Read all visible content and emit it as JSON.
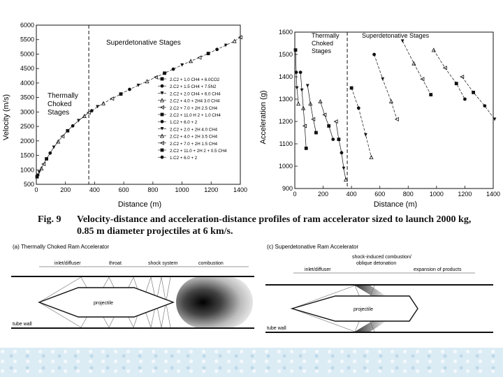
{
  "figure": {
    "caption_label": "Fig. 9",
    "caption_line1": "Velocity-distance and acceleration-distance profiles of ram accelerator sized to launch 2000 kg,",
    "caption_line2": "0.85 m diameter projectiles at 6 km/s."
  },
  "colors": {
    "ink": "#111111",
    "band": "#dcecf5"
  },
  "chart_data": [
    {
      "type": "scatter",
      "xlabel": "Distance (m)",
      "ylabel": "Velocity (m/s)",
      "xlim": [
        0,
        1400
      ],
      "ylim": [
        500,
        6000
      ],
      "xticks": [
        0,
        200,
        400,
        600,
        800,
        1000,
        1200,
        1400
      ],
      "yticks": [
        500,
        1000,
        1500,
        2000,
        2500,
        3000,
        3500,
        4000,
        4500,
        5000,
        5500,
        6000
      ],
      "divider_x": 360,
      "annotations": [
        "Thermally Choked Stages",
        "Superdetonative Stages"
      ],
      "legend": [
        "2.C2 + 1.0 CH4 + 6.0CO2",
        "2.C2 + 1.5 CH4 + 7.5N2",
        "2.C2 + 2.0 CH4 + 6.0 CH4",
        "2.C2 + 4.0 + 2H4 3.0 CH4",
        "2.C2 + 7.0 + 2H 2.5 CH4",
        "2.C2 + 11.0 H 2 + 1.0 CH4",
        "1.C2 + 6.0 + 2",
        "2.C2 + 2.0 + 2H 4.0 CH4",
        "2.C2 + 4.0 + 2H 3.5 CH4",
        "2.C2 + 7.0 + 2H 1.5 CH4",
        "2.C2 + 11.0 + 2H 2 + 0.5 CH4",
        "1.C2 + 6.0 + 2"
      ],
      "series_points": {
        "thermally_choked": [
          [
            5,
            760
          ],
          [
            10,
            820
          ],
          [
            20,
            920
          ],
          [
            35,
            1050
          ],
          [
            50,
            1200
          ],
          [
            70,
            1380
          ],
          [
            95,
            1580
          ],
          [
            120,
            1780
          ],
          [
            150,
            1980
          ],
          [
            180,
            2160
          ],
          [
            215,
            2350
          ],
          [
            250,
            2520
          ],
          [
            290,
            2700
          ],
          [
            330,
            2860
          ],
          [
            360,
            2980
          ]
        ],
        "superdetonative": [
          [
            380,
            3040
          ],
          [
            420,
            3180
          ],
          [
            460,
            3300
          ],
          [
            520,
            3460
          ],
          [
            580,
            3620
          ],
          [
            640,
            3780
          ],
          [
            700,
            3920
          ],
          [
            760,
            4060
          ],
          [
            820,
            4200
          ],
          [
            880,
            4340
          ],
          [
            940,
            4480
          ],
          [
            1000,
            4620
          ],
          [
            1060,
            4760
          ],
          [
            1120,
            4880
          ],
          [
            1180,
            5020
          ],
          [
            1240,
            5160
          ],
          [
            1300,
            5300
          ],
          [
            1360,
            5450
          ],
          [
            1400,
            5580
          ]
        ]
      }
    },
    {
      "type": "scatter",
      "xlabel": "Distance (m)",
      "ylabel": "Acceleration (g)",
      "xlim": [
        0,
        1400
      ],
      "ylim": [
        900,
        1600
      ],
      "xticks": [
        0,
        200,
        400,
        600,
        800,
        1000,
        1200,
        1400
      ],
      "yticks": [
        900,
        1000,
        1100,
        1200,
        1300,
        1400,
        1500,
        1600
      ],
      "divider_x": 370,
      "annotations": [
        "Thermally Choked Stages",
        "Superdetonative Stages"
      ],
      "series_points": {
        "choked_a": [
          [
            5,
            1520
          ],
          [
            10,
            1420
          ],
          [
            15,
            1350
          ],
          [
            25,
            1280
          ]
        ],
        "choked_b": [
          [
            40,
            1420
          ],
          [
            50,
            1340
          ],
          [
            60,
            1260
          ],
          [
            70,
            1180
          ],
          [
            80,
            1080
          ]
        ],
        "choked_c": [
          [
            90,
            1360
          ],
          [
            110,
            1280
          ],
          [
            130,
            1210
          ],
          [
            150,
            1150
          ]
        ],
        "choked_d": [
          [
            180,
            1290
          ],
          [
            210,
            1230
          ],
          [
            240,
            1180
          ],
          [
            270,
            1120
          ]
        ],
        "choked_e": [
          [
            290,
            1200
          ],
          [
            310,
            1120
          ],
          [
            330,
            1060
          ],
          [
            345,
            990
          ],
          [
            360,
            940
          ]
        ],
        "super_1": [
          [
            400,
            1350
          ],
          [
            450,
            1260
          ],
          [
            500,
            1140
          ],
          [
            540,
            1040
          ]
        ],
        "super_2": [
          [
            560,
            1500
          ],
          [
            620,
            1390
          ],
          [
            680,
            1290
          ],
          [
            720,
            1210
          ]
        ],
        "super_3": [
          [
            760,
            1560
          ],
          [
            840,
            1460
          ],
          [
            900,
            1390
          ],
          [
            960,
            1320
          ]
        ],
        "super_4": [
          [
            980,
            1520
          ],
          [
            1060,
            1440
          ],
          [
            1140,
            1370
          ],
          [
            1200,
            1300
          ]
        ],
        "super_5": [
          [
            1180,
            1400
          ],
          [
            1260,
            1330
          ],
          [
            1340,
            1270
          ],
          [
            1410,
            1210
          ]
        ]
      }
    }
  ],
  "diagram_a": {
    "title": "(a) Thermally Choked Ram Accelerator",
    "labels": [
      "inlet/diffuser",
      "throat",
      "shock system",
      "combustion"
    ],
    "projectile": "projectile",
    "tube": "tube wall"
  },
  "diagram_c": {
    "title": "(c) Superdetonative Ram Accelerator",
    "labels": [
      "inlet/diffuser",
      "shock-induced combustion/",
      "oblique detonation",
      "expansion of products"
    ],
    "projectile": "projectile",
    "tube": "tube wall"
  }
}
